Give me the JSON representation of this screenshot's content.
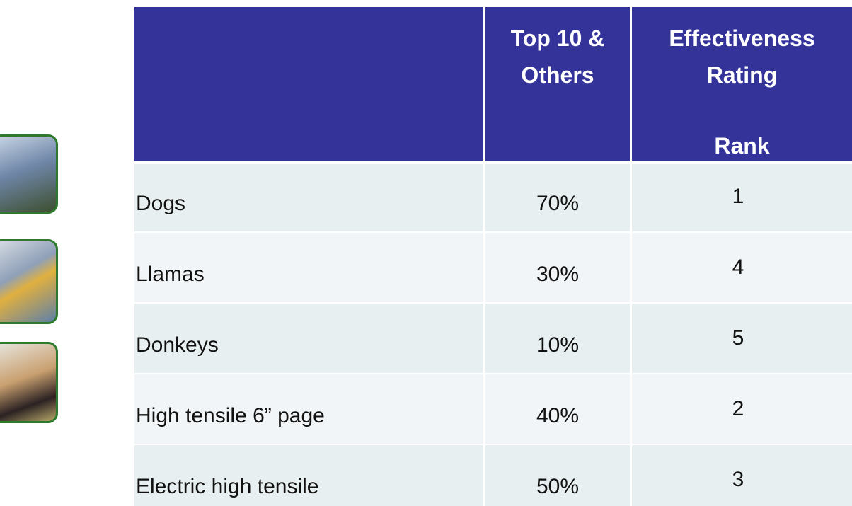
{
  "table": {
    "header": {
      "share": "Top 10 & Others",
      "rating": "Effectiveness Rating",
      "rating_sub": "Rank"
    },
    "rows": [
      [
        "Dogs",
        "70%",
        1
      ],
      [
        "Llamas",
        "30%",
        4
      ],
      [
        "Donkeys",
        "10%",
        5
      ],
      [
        "High tensile 6” page",
        "40%",
        2
      ],
      [
        "Electric high tensile",
        "50%",
        3
      ]
    ]
  }
}
